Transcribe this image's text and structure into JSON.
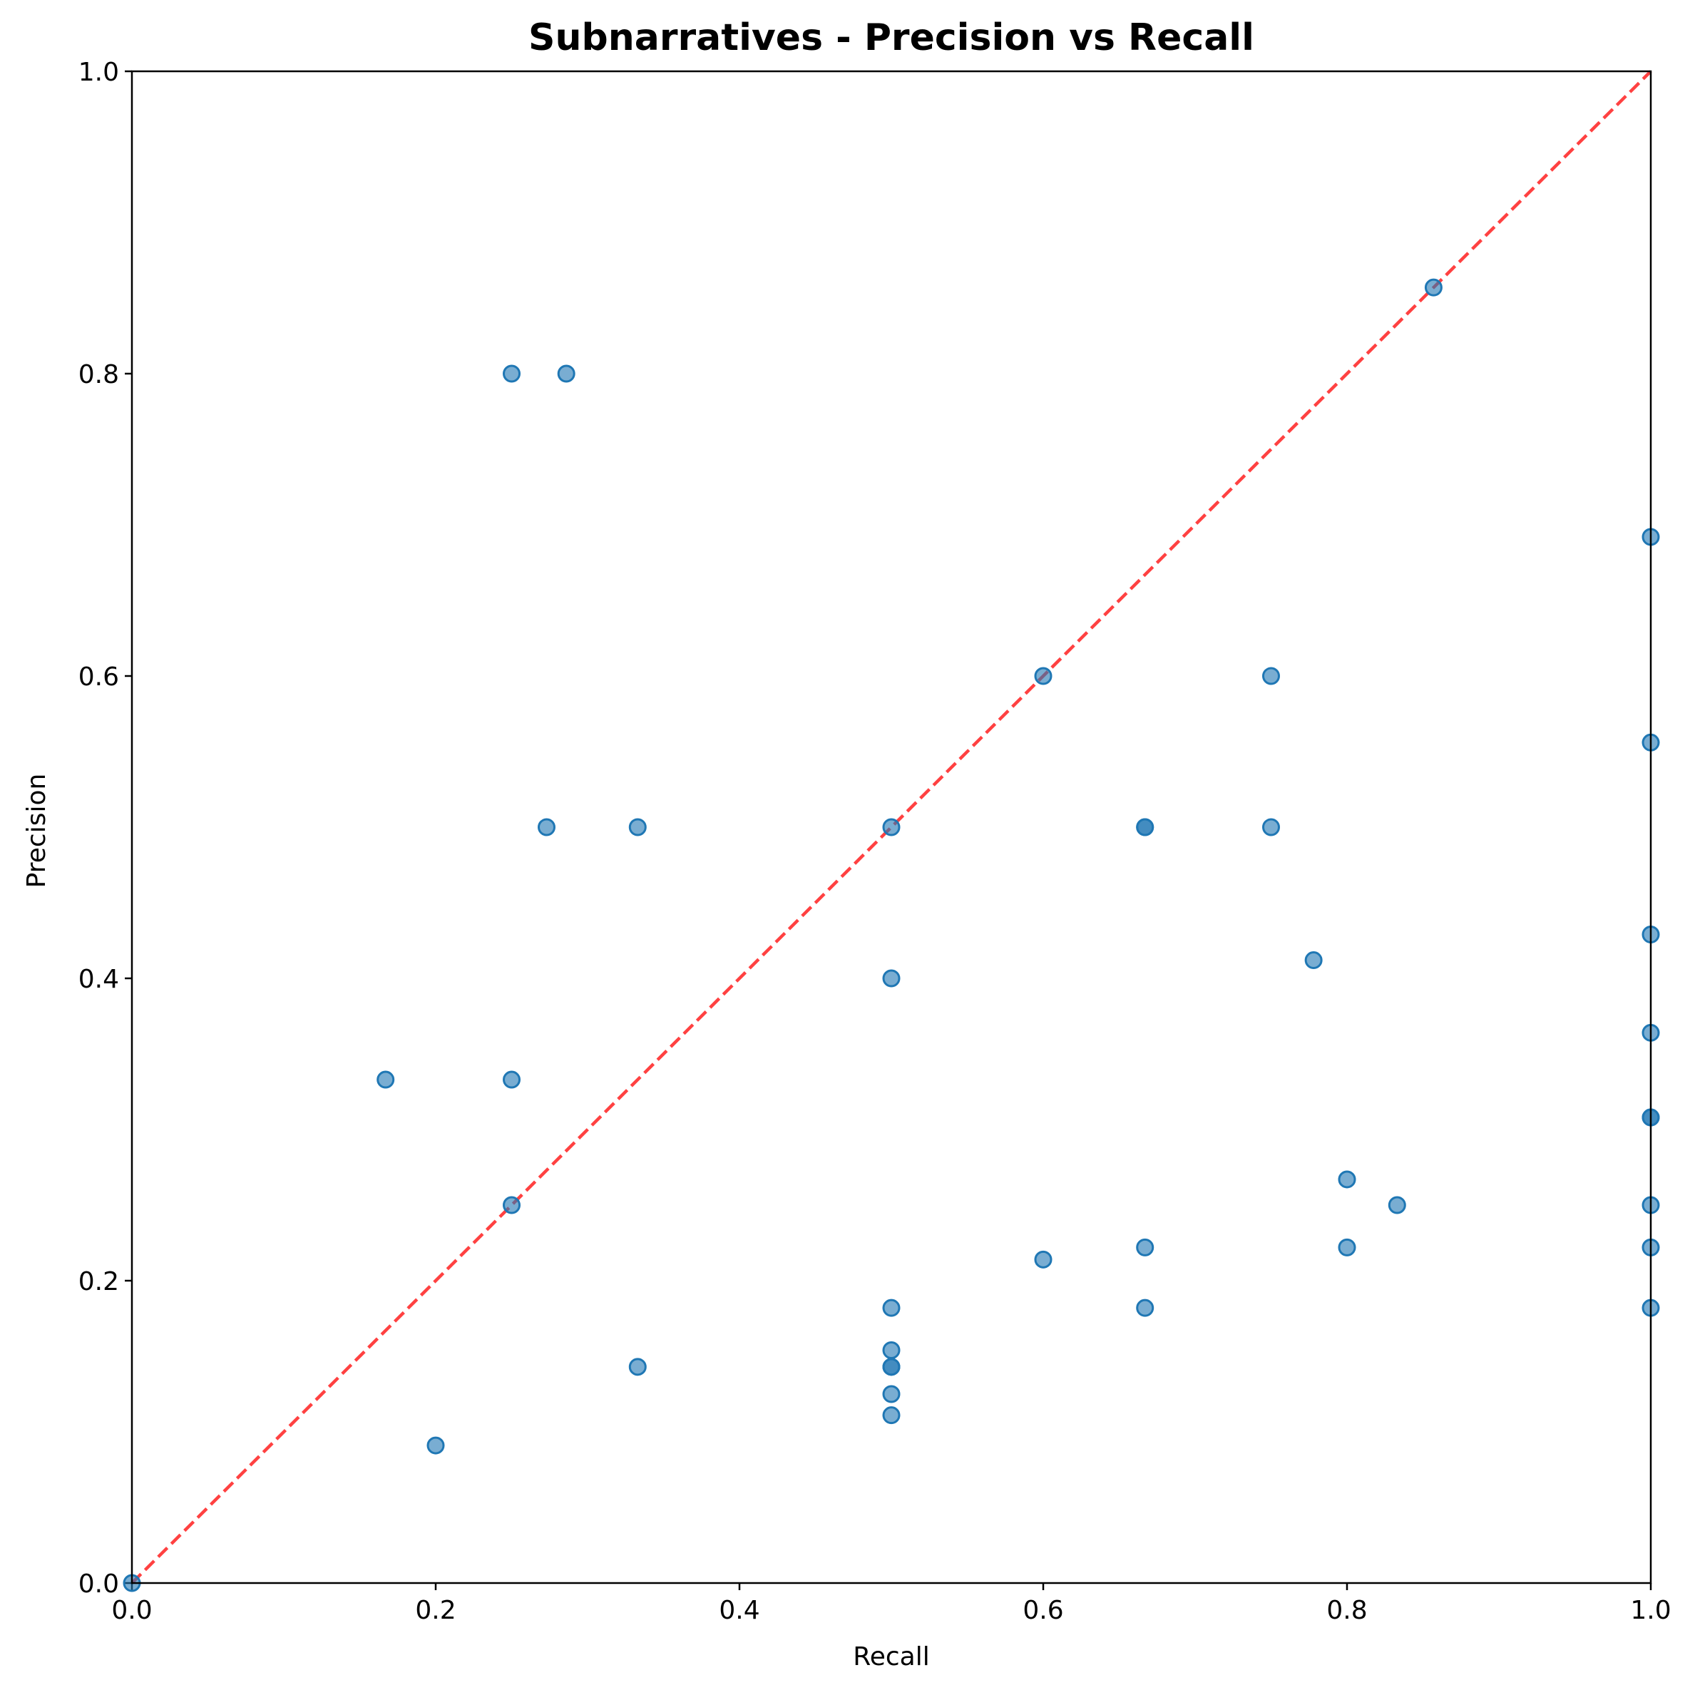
{
  "chart_data": {
    "type": "scatter",
    "title": "Subnarratives - Precision vs Recall",
    "xlabel": "Recall",
    "ylabel": "Precision",
    "xlim": [
      0.0,
      1.0
    ],
    "ylim": [
      0.0,
      1.0
    ],
    "xticks": [
      "0.0",
      "0.2",
      "0.4",
      "0.6",
      "0.8",
      "1.0"
    ],
    "yticks": [
      "0.0",
      "0.2",
      "0.4",
      "0.6",
      "0.8",
      "1.0"
    ],
    "grid": false,
    "reference_line": {
      "style": "dashed",
      "color": "#ff2020",
      "from": [
        0.0,
        0.0
      ],
      "to": [
        1.0,
        1.0
      ]
    },
    "point_color": "#1f77b4",
    "points": [
      {
        "x": 0.0,
        "y": 0.0
      },
      {
        "x": 0.167,
        "y": 0.333
      },
      {
        "x": 0.2,
        "y": 0.091
      },
      {
        "x": 0.25,
        "y": 0.8
      },
      {
        "x": 0.25,
        "y": 0.333
      },
      {
        "x": 0.25,
        "y": 0.25
      },
      {
        "x": 0.273,
        "y": 0.5
      },
      {
        "x": 0.286,
        "y": 0.8
      },
      {
        "x": 0.333,
        "y": 0.5
      },
      {
        "x": 0.333,
        "y": 0.143
      },
      {
        "x": 0.5,
        "y": 0.5
      },
      {
        "x": 0.5,
        "y": 0.4
      },
      {
        "x": 0.5,
        "y": 0.182
      },
      {
        "x": 0.5,
        "y": 0.154
      },
      {
        "x": 0.5,
        "y": 0.143
      },
      {
        "x": 0.5,
        "y": 0.143
      },
      {
        "x": 0.5,
        "y": 0.125
      },
      {
        "x": 0.5,
        "y": 0.111
      },
      {
        "x": 0.6,
        "y": 0.6
      },
      {
        "x": 0.6,
        "y": 0.214
      },
      {
        "x": 0.667,
        "y": 0.5
      },
      {
        "x": 0.667,
        "y": 0.5
      },
      {
        "x": 0.667,
        "y": 0.222
      },
      {
        "x": 0.667,
        "y": 0.182
      },
      {
        "x": 0.75,
        "y": 0.6
      },
      {
        "x": 0.75,
        "y": 0.5
      },
      {
        "x": 0.778,
        "y": 0.412
      },
      {
        "x": 0.8,
        "y": 0.267
      },
      {
        "x": 0.8,
        "y": 0.222
      },
      {
        "x": 0.833,
        "y": 0.25
      },
      {
        "x": 0.857,
        "y": 0.857
      },
      {
        "x": 1.0,
        "y": 0.692
      },
      {
        "x": 1.0,
        "y": 0.556
      },
      {
        "x": 1.0,
        "y": 0.429
      },
      {
        "x": 1.0,
        "y": 0.364
      },
      {
        "x": 1.0,
        "y": 0.308
      },
      {
        "x": 1.0,
        "y": 0.308
      },
      {
        "x": 1.0,
        "y": 0.25
      },
      {
        "x": 1.0,
        "y": 0.222
      },
      {
        "x": 1.0,
        "y": 0.182
      }
    ]
  }
}
